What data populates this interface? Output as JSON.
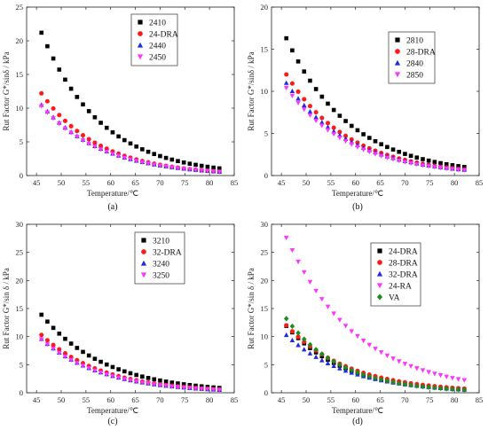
{
  "figure": {
    "x_axis_label": "Temperature/℃",
    "colors": {
      "black": "#000000",
      "red": "#ff1a1a",
      "blue": "#1f2ae6",
      "magenta": "#ff33ff",
      "green": "#1e8c1e"
    }
  },
  "chart_data": [
    {
      "type": "scatter",
      "caption": "(a)",
      "xlabel": "Temperature/℃",
      "ylabel": "Rut Factor G*/sinδ / kPa",
      "xlim": [
        43,
        85
      ],
      "ylim": [
        0,
        25
      ],
      "xticks": [
        45,
        50,
        55,
        60,
        65,
        70,
        75,
        80,
        85
      ],
      "yticks": [
        0,
        5,
        10,
        15,
        20,
        25
      ],
      "grid": false,
      "legend_position": "top-right",
      "series": [
        {
          "name": "2410",
          "marker": "square",
          "color": "#000000",
          "y0": 21.2,
          "k": 0.083
        },
        {
          "name": "24-DRA",
          "marker": "circle",
          "color": "#ff1a1a",
          "y0": 12.2,
          "k": 0.085
        },
        {
          "name": "2440",
          "marker": "triangle-up",
          "color": "#1f2ae6",
          "y0": 10.5,
          "k": 0.081
        },
        {
          "name": "2450",
          "marker": "triangle-down",
          "color": "#ff33ff",
          "y0": 10.3,
          "k": 0.081
        }
      ]
    },
    {
      "type": "scatter",
      "caption": "(b)",
      "xlabel": "Temperature/℃",
      "ylabel": "Rut Factor G*/sinδ / kPa",
      "xlim": [
        43,
        85
      ],
      "ylim": [
        0,
        20
      ],
      "xticks": [
        45,
        50,
        55,
        60,
        65,
        70,
        75,
        80,
        85
      ],
      "yticks": [
        0,
        5,
        10,
        15,
        20
      ],
      "grid": false,
      "legend_position": "top-right",
      "series": [
        {
          "name": "2810",
          "marker": "square",
          "color": "#000000",
          "y0": 16.3,
          "k": 0.077
        },
        {
          "name": "28-DRA",
          "marker": "circle",
          "color": "#ff1a1a",
          "y0": 12.0,
          "k": 0.078
        },
        {
          "name": "2840",
          "marker": "triangle-up",
          "color": "#1f2ae6",
          "y0": 11.0,
          "k": 0.077
        },
        {
          "name": "2850",
          "marker": "triangle-down",
          "color": "#ff33ff",
          "y0": 10.4,
          "k": 0.078
        }
      ]
    },
    {
      "type": "scatter",
      "caption": "(c)",
      "xlabel": "Temperature/℃",
      "ylabel": "Rut Factor G*/sin δ / kPa",
      "xlim": [
        43,
        85
      ],
      "ylim": [
        0,
        30
      ],
      "xticks": [
        45,
        50,
        55,
        60,
        65,
        70,
        75,
        80,
        85
      ],
      "yticks": [
        0,
        5,
        10,
        15,
        20,
        25,
        30
      ],
      "grid": false,
      "legend_position": "top-right",
      "series": [
        {
          "name": "3210",
          "marker": "square",
          "color": "#000000",
          "y0": 13.9,
          "k": 0.077
        },
        {
          "name": "32-DRA",
          "marker": "circle",
          "color": "#ff1a1a",
          "y0": 10.3,
          "k": 0.08
        },
        {
          "name": "3240",
          "marker": "triangle-up",
          "color": "#1f2ae6",
          "y0": 9.6,
          "k": 0.081
        },
        {
          "name": "3250",
          "marker": "triangle-down",
          "color": "#ff33ff",
          "y0": 9.5,
          "k": 0.081
        }
      ]
    },
    {
      "type": "scatter",
      "caption": "(d)",
      "xlabel": "Temperature/℃",
      "ylabel": "Rut Factor G*/sin δ / kPa",
      "xlim": [
        43,
        85
      ],
      "ylim": [
        0,
        30
      ],
      "xticks": [
        45,
        50,
        55,
        60,
        65,
        70,
        75,
        80,
        85
      ],
      "yticks": [
        0,
        5,
        10,
        15,
        20,
        25,
        30
      ],
      "grid": false,
      "legend_position": "top-right",
      "series": [
        {
          "name": "24-DRA",
          "marker": "square",
          "color": "#000000",
          "y0": 11.9,
          "k": 0.084
        },
        {
          "name": "28-DRA",
          "marker": "circle",
          "color": "#ff1a1a",
          "y0": 12.0,
          "k": 0.078
        },
        {
          "name": "32-DRA",
          "marker": "triangle-up",
          "color": "#1f2ae6",
          "y0": 10.3,
          "k": 0.08
        },
        {
          "name": "24-RA",
          "marker": "triangle-down",
          "color": "#ff33ff",
          "y0": 27.6,
          "k": 0.07
        },
        {
          "name": "VA",
          "marker": "diamond",
          "color": "#1e8c1e",
          "y0": 13.2,
          "k": 0.09
        }
      ]
    }
  ]
}
